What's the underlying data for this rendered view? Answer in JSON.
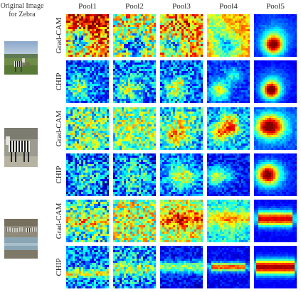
{
  "caption": {
    "line1": "Original Image",
    "line2": "for Zebra"
  },
  "columns": [
    "Pool1",
    "Pool2",
    "Pool3",
    "Pool4",
    "Pool5"
  ],
  "rows": [
    {
      "method": "Grad-CAM",
      "image": "zebra-1"
    },
    {
      "method": "CHIP",
      "image": "zebra-1"
    },
    {
      "method": "Grad-CAM",
      "image": "zebra-2"
    },
    {
      "method": "CHIP",
      "image": "zebra-2"
    },
    {
      "method": "Grad-CAM",
      "image": "zebra-3"
    },
    {
      "method": "CHIP",
      "image": "zebra-3"
    }
  ],
  "colors": {
    "jet_low": "#00008f",
    "jet_mid": "#80ff80",
    "jet_high": "#800000"
  }
}
